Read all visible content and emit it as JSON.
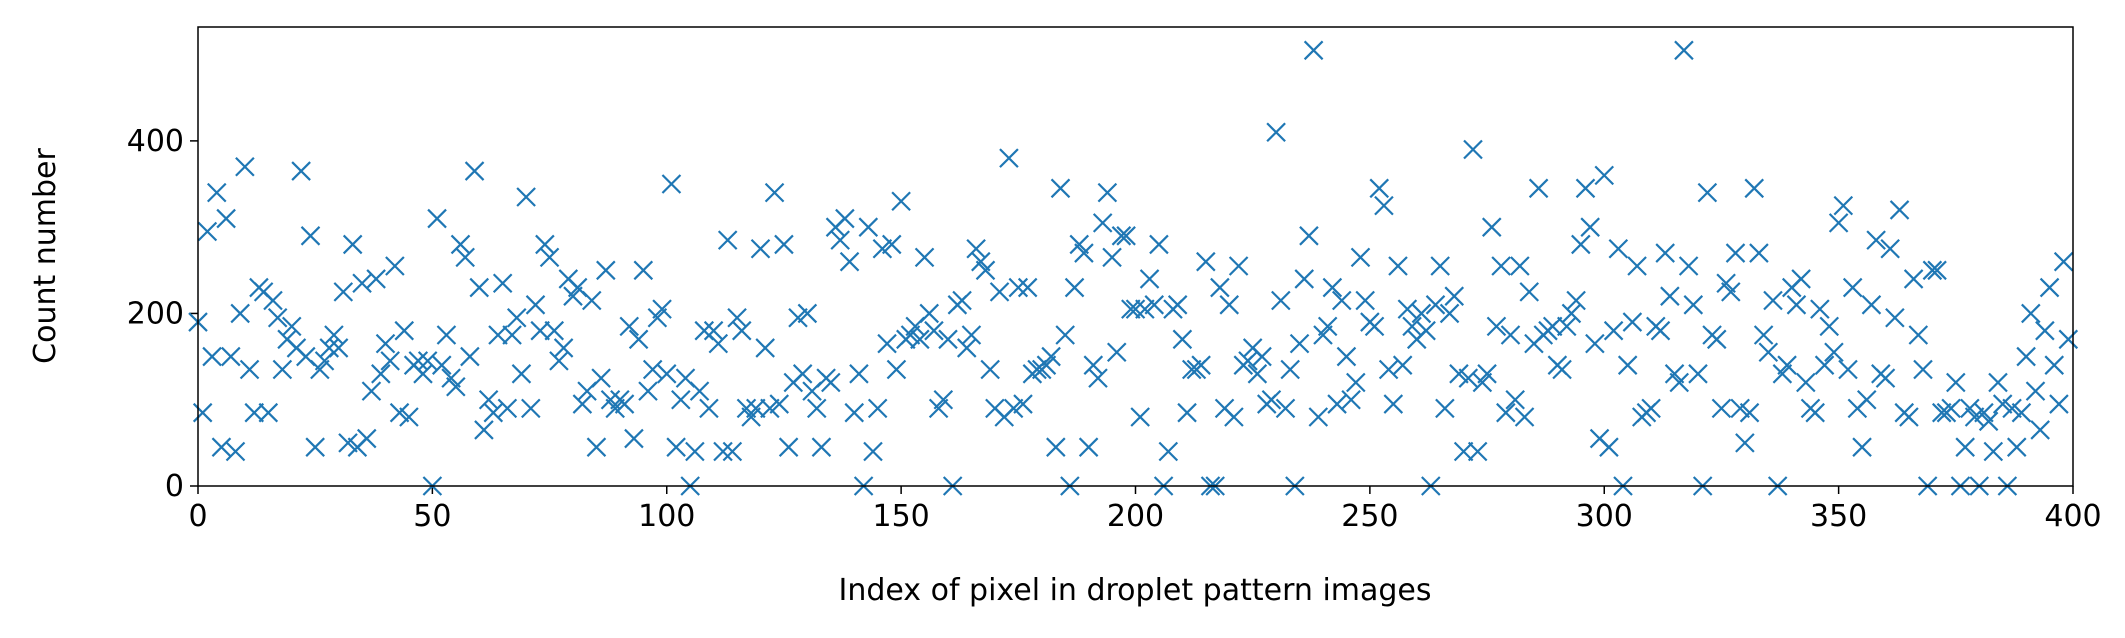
{
  "chart_data": {
    "type": "scatter",
    "xlabel": "Index of pixel in droplet pattern images",
    "ylabel": "Count number",
    "color": "#1f77b4",
    "marker": "x",
    "xlim": [
      0,
      400
    ],
    "ylim": [
      0,
      532
    ],
    "xticks": [
      0,
      50,
      100,
      150,
      200,
      250,
      300,
      350,
      400
    ],
    "yticks": [
      0,
      200,
      400
    ],
    "x": [
      0,
      1,
      2,
      3,
      4,
      5,
      6,
      7,
      8,
      9,
      10,
      11,
      12,
      13,
      14,
      15,
      16,
      17,
      18,
      19,
      20,
      21,
      22,
      23,
      24,
      25,
      26,
      27,
      28,
      29,
      30,
      31,
      32,
      33,
      34,
      35,
      36,
      37,
      38,
      39,
      40,
      41,
      42,
      43,
      44,
      45,
      46,
      47,
      48,
      49,
      50,
      51,
      52,
      53,
      54,
      55,
      56,
      57,
      58,
      59,
      60,
      61,
      62,
      63,
      64,
      65,
      66,
      67,
      68,
      69,
      70,
      71,
      72,
      73,
      74,
      75,
      76,
      77,
      78,
      79,
      80,
      81,
      82,
      83,
      84,
      85,
      86,
      87,
      88,
      89,
      90,
      91,
      92,
      93,
      94,
      95,
      96,
      97,
      98,
      99,
      100,
      101,
      102,
      103,
      104,
      105,
      106,
      107,
      108,
      109,
      110,
      111,
      112,
      113,
      114,
      115,
      116,
      117,
      118,
      119,
      120,
      121,
      122,
      123,
      124,
      125,
      126,
      127,
      128,
      129,
      130,
      131,
      132,
      133,
      134,
      135,
      136,
      137,
      138,
      139,
      140,
      141,
      142,
      143,
      144,
      145,
      146,
      147,
      148,
      149,
      150,
      151,
      152,
      153,
      154,
      155,
      156,
      157,
      158,
      159,
      160,
      161,
      162,
      163,
      164,
      165,
      166,
      167,
      168,
      169,
      170,
      171,
      172,
      173,
      174,
      175,
      176,
      177,
      178,
      179,
      180,
      181,
      182,
      183,
      184,
      185,
      186,
      187,
      188,
      189,
      190,
      191,
      192,
      193,
      194,
      195,
      196,
      197,
      198,
      199,
      200,
      201,
      202,
      203,
      204,
      205,
      206,
      207,
      208,
      209,
      210,
      211,
      212,
      213,
      214,
      215,
      216,
      217,
      218,
      219,
      220,
      221,
      222,
      223,
      224,
      225,
      226,
      227,
      228,
      229,
      230,
      231,
      232,
      233,
      234,
      235,
      236,
      237,
      238,
      239,
      240,
      241,
      242,
      243,
      244,
      245,
      246,
      247,
      248,
      249,
      250,
      251,
      252,
      253,
      254,
      255,
      256,
      257,
      258,
      259,
      260,
      261,
      262,
      263,
      264,
      265,
      266,
      267,
      268,
      269,
      270,
      271,
      272,
      273,
      274,
      275,
      276,
      277,
      278,
      279,
      280,
      281,
      282,
      283,
      284,
      285,
      286,
      287,
      288,
      289,
      290,
      291,
      292,
      293,
      294,
      295,
      296,
      297,
      298,
      299,
      300,
      301,
      302,
      303,
      304,
      305,
      306,
      307,
      308,
      309,
      310,
      311,
      312,
      313,
      314,
      315,
      316,
      317,
      318,
      319,
      320,
      321,
      322,
      323,
      324,
      325,
      326,
      327,
      328,
      329,
      330,
      331,
      332,
      333,
      334,
      335,
      336,
      337,
      338,
      339,
      340,
      341,
      342,
      343,
      344,
      345,
      346,
      347,
      348,
      349,
      350,
      351,
      352,
      353,
      354,
      355,
      356,
      357,
      358,
      359,
      360,
      361,
      362,
      363,
      364,
      365,
      366,
      367,
      368,
      369,
      370,
      371,
      372,
      373,
      374,
      375,
      376,
      377,
      378,
      379,
      380,
      381,
      382,
      383,
      384,
      385,
      386,
      387,
      388,
      389,
      390,
      391,
      392,
      393,
      394,
      395,
      396,
      397,
      398,
      399
    ],
    "values": [
      190,
      85,
      295,
      150,
      340,
      45,
      310,
      150,
      40,
      200,
      370,
      135,
      85,
      230,
      225,
      85,
      215,
      195,
      135,
      170,
      185,
      160,
      365,
      150,
      290,
      45,
      135,
      145,
      160,
      175,
      160,
      225,
      50,
      280,
      45,
      235,
      55,
      110,
      240,
      130,
      165,
      145,
      255,
      85,
      180,
      80,
      140,
      145,
      130,
      145,
      0,
      310,
      140,
      175,
      125,
      115,
      280,
      265,
      150,
      365,
      230,
      65,
      100,
      85,
      175,
      235,
      90,
      175,
      195,
      130,
      335,
      90,
      210,
      180,
      280,
      265,
      180,
      145,
      160,
      240,
      220,
      230,
      95,
      110,
      215,
      45,
      125,
      250,
      100,
      90,
      100,
      95,
      185,
      55,
      170,
      250,
      110,
      135,
      195,
      205,
      130,
      350,
      45,
      100,
      125,
      0,
      40,
      110,
      180,
      90,
      180,
      165,
      40,
      285,
      40,
      195,
      180,
      90,
      80,
      90,
      275,
      160,
      90,
      340,
      95,
      280,
      45,
      120,
      195,
      130,
      200,
      110,
      90,
      45,
      125,
      120,
      300,
      285,
      310,
      260,
      85,
      130,
      0,
      300,
      40,
      90,
      275,
      165,
      280,
      135,
      330,
      170,
      175,
      185,
      170,
      265,
      200,
      180,
      90,
      100,
      170,
      0,
      210,
      215,
      160,
      175,
      275,
      260,
      250,
      135,
      90,
      225,
      80,
      380,
      90,
      230,
      95,
      230,
      130,
      135,
      135,
      140,
      150,
      45,
      345,
      175,
      0,
      230,
      280,
      270,
      45,
      140,
      125,
      305,
      340,
      265,
      155,
      290,
      290,
      205,
      205,
      80,
      205,
      240,
      210,
      280,
      0,
      40,
      205,
      210,
      170,
      85,
      135,
      135,
      140,
      260,
      0,
      0,
      230,
      90,
      210,
      80,
      255,
      140,
      145,
      160,
      130,
      150,
      95,
      100,
      410,
      215,
      90,
      135,
      0,
      165,
      240,
      290,
      505,
      80,
      175,
      185,
      230,
      95,
      215,
      150,
      100,
      120,
      265,
      215,
      190,
      185,
      345,
      325,
      135,
      95,
      255,
      140,
      205,
      185,
      170,
      200,
      180,
      0,
      210,
      255,
      90,
      200,
      220,
      130,
      40,
      125,
      390,
      40,
      120,
      130,
      300,
      185,
      255,
      85,
      175,
      100,
      255,
      80,
      225,
      165,
      345,
      175,
      180,
      185,
      140,
      135,
      185,
      200,
      215,
      280,
      345,
      300,
      165,
      55,
      360,
      45,
      180,
      275,
      0,
      140,
      190,
      255,
      80,
      85,
      90,
      185,
      180,
      270,
      220,
      130,
      120,
      505,
      255,
      210,
      130,
      0,
      340,
      175,
      170,
      90,
      235,
      225,
      270,
      90,
      50,
      85,
      345,
      270,
      175,
      155,
      215,
      0,
      130,
      140,
      230,
      210,
      240,
      120,
      90,
      85,
      205,
      140,
      185,
      155,
      305,
      325,
      135,
      230,
      90,
      45,
      100,
      210,
      285,
      130,
      125,
      275,
      195,
      320,
      85,
      80,
      240,
      175,
      135,
      0,
      250,
      250,
      85,
      85,
      90,
      120,
      0,
      45,
      90,
      80,
      0,
      85,
      75,
      40,
      120,
      95,
      0,
      90,
      45,
      85,
      150,
      200,
      110,
      65,
      180,
      230,
      140,
      95,
      260,
      170
    ]
  }
}
